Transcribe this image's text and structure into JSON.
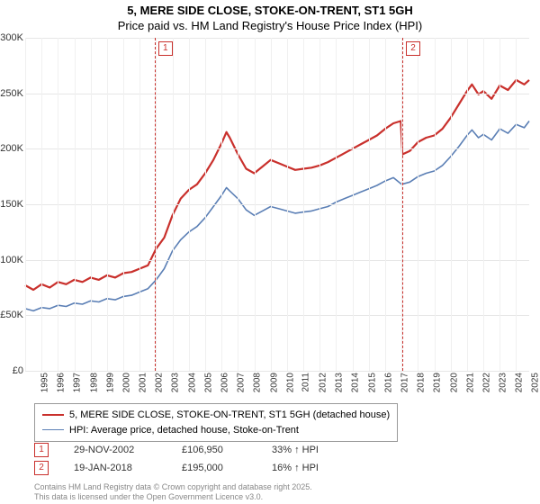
{
  "title": {
    "line1": "5, MERE SIDE CLOSE, STOKE-ON-TRENT, ST1 5GH",
    "line2": "Price paid vs. HM Land Registry's House Price Index (HPI)"
  },
  "chart": {
    "type": "line",
    "x_axis": {
      "years": [
        1995,
        1996,
        1997,
        1998,
        1999,
        2000,
        2001,
        2002,
        2003,
        2004,
        2005,
        2006,
        2007,
        2008,
        2009,
        2010,
        2011,
        2012,
        2013,
        2014,
        2015,
        2016,
        2017,
        2018,
        2019,
        2020,
        2021,
        2022,
        2023,
        2024,
        2025
      ],
      "min": 1995,
      "max": 2025.8,
      "label_fontsize": 10,
      "label_rotation": -90
    },
    "y_axis": {
      "min": 0,
      "max": 300000,
      "ticks": [
        0,
        50000,
        100000,
        150000,
        200000,
        250000,
        300000
      ],
      "tick_labels": [
        "£0",
        "£50K",
        "£100K",
        "£150K",
        "£200K",
        "£250K",
        "£300K"
      ],
      "label_fontsize": 11
    },
    "grid_color": "#e6e6e6",
    "background_color": "#ffffff",
    "series": [
      {
        "name": "price_paid",
        "label": "5, MERE SIDE CLOSE, STOKE-ON-TRENT, ST1 5GH (detached house)",
        "color": "#c9302c",
        "width": 2.2,
        "points": [
          [
            1995,
            77000
          ],
          [
            1995.5,
            73000
          ],
          [
            1996,
            78000
          ],
          [
            1996.5,
            75000
          ],
          [
            1997,
            80000
          ],
          [
            1997.5,
            78000
          ],
          [
            1998,
            82000
          ],
          [
            1998.5,
            80000
          ],
          [
            1999,
            84000
          ],
          [
            1999.5,
            82000
          ],
          [
            2000,
            86000
          ],
          [
            2000.5,
            84000
          ],
          [
            2001,
            88000
          ],
          [
            2001.5,
            89000
          ],
          [
            2002,
            92000
          ],
          [
            2002.5,
            95000
          ],
          [
            2002.9,
            106950
          ],
          [
            2003,
            110000
          ],
          [
            2003.5,
            120000
          ],
          [
            2004,
            140000
          ],
          [
            2004.5,
            155000
          ],
          [
            2005,
            163000
          ],
          [
            2005.5,
            168000
          ],
          [
            2006,
            178000
          ],
          [
            2006.5,
            190000
          ],
          [
            2007,
            205000
          ],
          [
            2007.3,
            215000
          ],
          [
            2007.5,
            210000
          ],
          [
            2008,
            195000
          ],
          [
            2008.5,
            182000
          ],
          [
            2009,
            178000
          ],
          [
            2009.5,
            184000
          ],
          [
            2010,
            190000
          ],
          [
            2010.5,
            187000
          ],
          [
            2011,
            184000
          ],
          [
            2011.5,
            181000
          ],
          [
            2012,
            182000
          ],
          [
            2012.5,
            183000
          ],
          [
            2013,
            185000
          ],
          [
            2013.5,
            188000
          ],
          [
            2014,
            192000
          ],
          [
            2014.5,
            196000
          ],
          [
            2015,
            200000
          ],
          [
            2015.5,
            204000
          ],
          [
            2016,
            208000
          ],
          [
            2016.5,
            212000
          ],
          [
            2017,
            218000
          ],
          [
            2017.5,
            223000
          ],
          [
            2017.95,
            225000
          ],
          [
            2018.05,
            195000
          ],
          [
            2018.5,
            198000
          ],
          [
            2019,
            206000
          ],
          [
            2019.5,
            210000
          ],
          [
            2020,
            212000
          ],
          [
            2020.5,
            218000
          ],
          [
            2021,
            228000
          ],
          [
            2021.5,
            240000
          ],
          [
            2022,
            252000
          ],
          [
            2022.3,
            258000
          ],
          [
            2022.7,
            249000
          ],
          [
            2023,
            252000
          ],
          [
            2023.5,
            245000
          ],
          [
            2024,
            257000
          ],
          [
            2024.5,
            253000
          ],
          [
            2025,
            262000
          ],
          [
            2025.5,
            258000
          ],
          [
            2025.8,
            262000
          ]
        ]
      },
      {
        "name": "hpi",
        "label": "HPI: Average price, detached house, Stoke-on-Trent",
        "color": "#5b7fb5",
        "width": 1.6,
        "points": [
          [
            1995,
            56000
          ],
          [
            1995.5,
            54000
          ],
          [
            1996,
            57000
          ],
          [
            1996.5,
            56000
          ],
          [
            1997,
            59000
          ],
          [
            1997.5,
            58000
          ],
          [
            1998,
            61000
          ],
          [
            1998.5,
            60000
          ],
          [
            1999,
            63000
          ],
          [
            1999.5,
            62000
          ],
          [
            2000,
            65000
          ],
          [
            2000.5,
            64000
          ],
          [
            2001,
            67000
          ],
          [
            2001.5,
            68000
          ],
          [
            2002,
            71000
          ],
          [
            2002.5,
            74000
          ],
          [
            2003,
            82000
          ],
          [
            2003.5,
            92000
          ],
          [
            2004,
            108000
          ],
          [
            2004.5,
            118000
          ],
          [
            2005,
            125000
          ],
          [
            2005.5,
            130000
          ],
          [
            2006,
            138000
          ],
          [
            2006.5,
            148000
          ],
          [
            2007,
            158000
          ],
          [
            2007.3,
            165000
          ],
          [
            2007.5,
            162000
          ],
          [
            2008,
            155000
          ],
          [
            2008.5,
            145000
          ],
          [
            2009,
            140000
          ],
          [
            2009.5,
            144000
          ],
          [
            2010,
            148000
          ],
          [
            2010.5,
            146000
          ],
          [
            2011,
            144000
          ],
          [
            2011.5,
            142000
          ],
          [
            2012,
            143000
          ],
          [
            2012.5,
            144000
          ],
          [
            2013,
            146000
          ],
          [
            2013.5,
            148000
          ],
          [
            2014,
            152000
          ],
          [
            2014.5,
            155000
          ],
          [
            2015,
            158000
          ],
          [
            2015.5,
            161000
          ],
          [
            2016,
            164000
          ],
          [
            2016.5,
            167000
          ],
          [
            2017,
            171000
          ],
          [
            2017.5,
            174000
          ],
          [
            2018,
            168000
          ],
          [
            2018.5,
            170000
          ],
          [
            2019,
            175000
          ],
          [
            2019.5,
            178000
          ],
          [
            2020,
            180000
          ],
          [
            2020.5,
            185000
          ],
          [
            2021,
            193000
          ],
          [
            2021.5,
            202000
          ],
          [
            2022,
            212000
          ],
          [
            2022.3,
            217000
          ],
          [
            2022.7,
            210000
          ],
          [
            2023,
            213000
          ],
          [
            2023.5,
            208000
          ],
          [
            2024,
            218000
          ],
          [
            2024.5,
            214000
          ],
          [
            2025,
            222000
          ],
          [
            2025.5,
            219000
          ],
          [
            2025.8,
            225000
          ]
        ]
      }
    ],
    "events": [
      {
        "n": "1",
        "x": 2002.91,
        "date": "29-NOV-2002",
        "price": "£106,950",
        "pct": "33% ↑ HPI",
        "badge_color": "#c9302c"
      },
      {
        "n": "2",
        "x": 2018.05,
        "date": "19-JAN-2018",
        "price": "£195,000",
        "pct": "16% ↑ HPI",
        "badge_color": "#c9302c"
      }
    ]
  },
  "footer": {
    "line1": "Contains HM Land Registry data © Crown copyright and database right 2025.",
    "line2": "This data is licensed under the Open Government Licence v3.0."
  }
}
